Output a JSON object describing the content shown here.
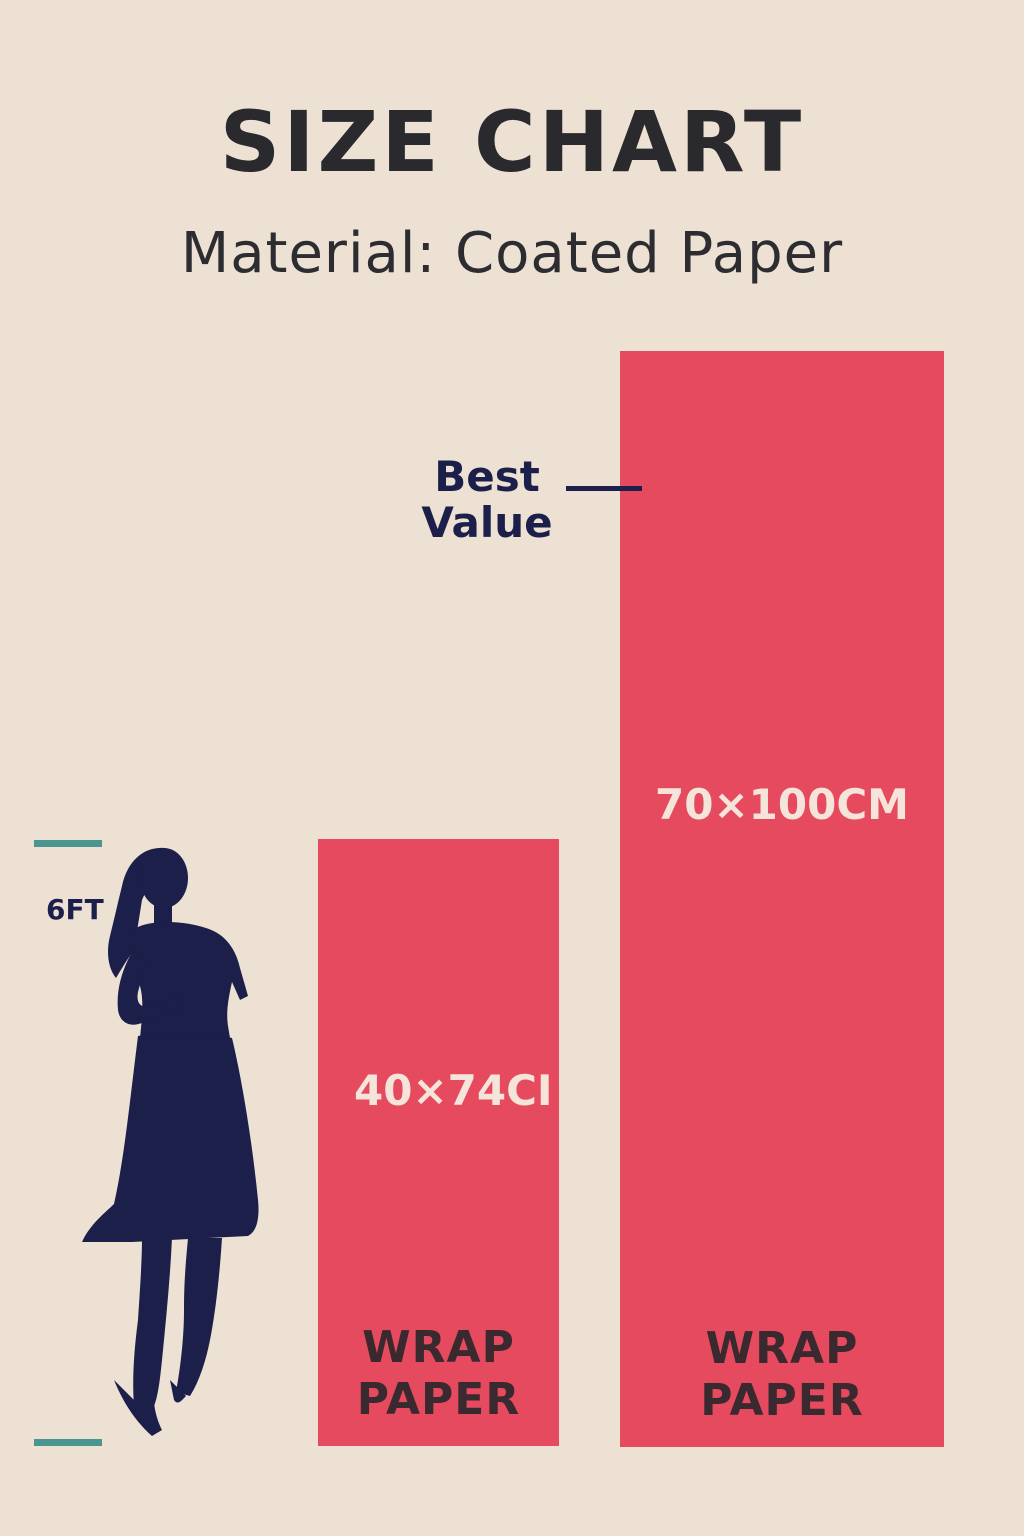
{
  "header": {
    "title": "SIZE CHART",
    "subtitle": "Material: Coated Paper"
  },
  "reference": {
    "height_label": "6FT",
    "figure": "person-silhouette",
    "tick_color": "#4a958f"
  },
  "products": [
    {
      "dimension": "40×74CI",
      "name_line1": "WRAP",
      "name_line2": "PAPER"
    },
    {
      "dimension": "70×100CM",
      "name_line1": "WRAP",
      "name_line2": "PAPER",
      "badge_line1": "Best",
      "badge_line2": "Value"
    }
  ],
  "colors": {
    "background": "#ede1d4",
    "bar": "#e64a5e",
    "figure": "#1c1f4a",
    "title_text": "#2a2a2e"
  }
}
